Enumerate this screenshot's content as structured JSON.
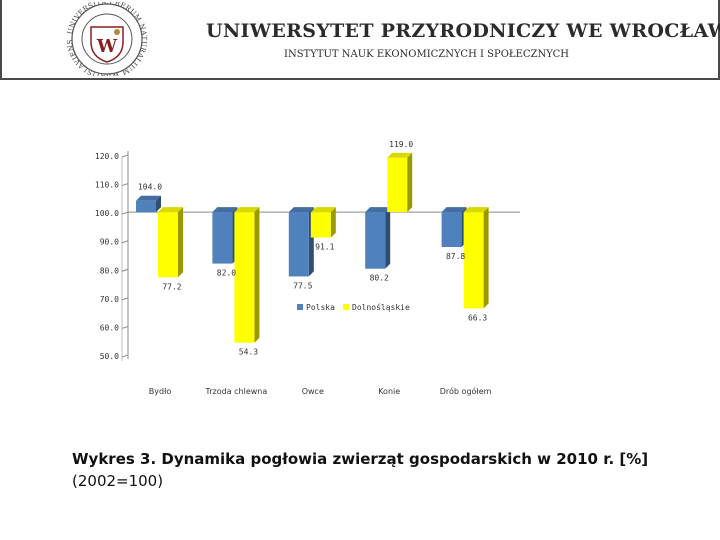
{
  "header": {
    "university": "UNIWERSYTET PRZYRODNICZY WE WROCŁAWIU",
    "institute": "INSTYTUT NAUK EKONOMICZNYCH I SPOŁECZNYCH",
    "seal_text": "UNIVERSITAS RERUM NATURALIUM WRATISLAVIENSIS",
    "colors": {
      "rule": "#4a4a4a",
      "seal_red": "#8b1f1f",
      "seal_gold": "#b08a3a"
    }
  },
  "chart_data": {
    "type": "bar",
    "categories": [
      "Bydło",
      "Trzoda chlewna",
      "Owce",
      "Konie",
      "Drób ogółem"
    ],
    "series": [
      {
        "name": "Polska",
        "values": [
          104.0,
          82.0,
          77.5,
          80.2,
          87.8
        ],
        "color": "#4f81bd"
      },
      {
        "name": "Dolnośląskie",
        "values": [
          77.2,
          54.3,
          91.1,
          119.0,
          66.3
        ],
        "color": "#ffff00"
      }
    ],
    "ylim": [
      50,
      120
    ],
    "yticks": [
      "50.0",
      "60.0",
      "70.0",
      "80.0",
      "90.0",
      "100.0",
      "110.0",
      "120.0"
    ],
    "baseline": 100,
    "grid": false,
    "legend": "center"
  },
  "caption": {
    "bold": "Wykres 3. Dynamika pogłowia zwierząt gospodarskich w 2010 r. [%]",
    "normal": "(2002=100)"
  }
}
